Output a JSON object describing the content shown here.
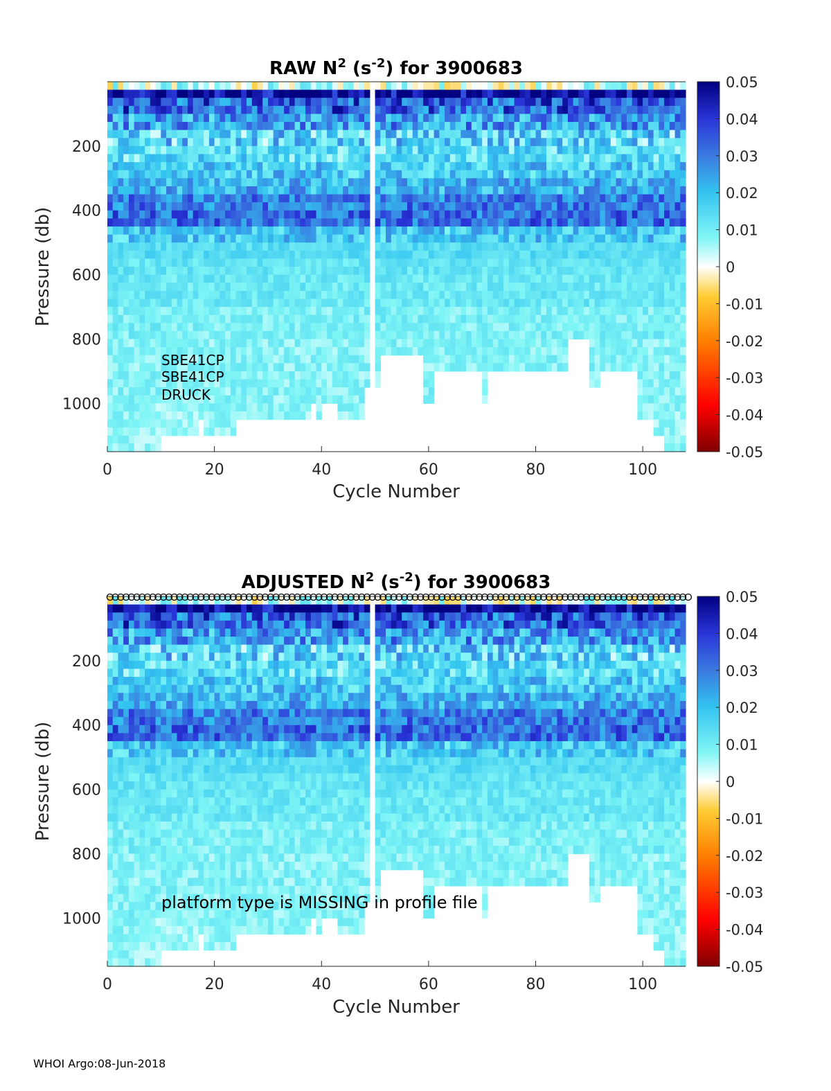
{
  "footer": "WHOI Argo:08-Jun-2018",
  "chart_data": [
    {
      "type": "heatmap",
      "title": {
        "prefix": "RAW N",
        "sup1": "2",
        "mid": " (s",
        "sup2": "-2",
        "suffix": ") for 3900683"
      },
      "xlabel": "Cycle Number",
      "ylabel": "Pressure (db)",
      "xlim": [
        0,
        108
      ],
      "ylim": [
        1150,
        0
      ],
      "xticks": [
        0,
        20,
        40,
        60,
        80,
        100
      ],
      "yticks": [
        200,
        400,
        600,
        800,
        1000
      ],
      "clim": [
        -0.05,
        0.05
      ],
      "colorbar_ticks": [
        "0.05",
        "0.04",
        "0.03",
        "0.02",
        "0.01",
        "0",
        "-0.01",
        "-0.02",
        "-0.03",
        "-0.04",
        "-0.05"
      ],
      "gap_cycles": [
        49,
        50
      ],
      "max_depth_by_cycle_range": [
        {
          "from": 0,
          "to": 10,
          "depth": 1150
        },
        {
          "from": 10,
          "to": 17,
          "depth": 1100
        },
        {
          "from": 17,
          "to": 18,
          "depth": 1050
        },
        {
          "from": 18,
          "to": 24,
          "depth": 1100
        },
        {
          "from": 24,
          "to": 38,
          "depth": 1050
        },
        {
          "from": 38,
          "to": 39,
          "depth": 1000
        },
        {
          "from": 39,
          "to": 40,
          "depth": 1050
        },
        {
          "from": 40,
          "to": 43,
          "depth": 1000
        },
        {
          "from": 43,
          "to": 48,
          "depth": 1050
        },
        {
          "from": 48,
          "to": 49,
          "depth": 950
        },
        {
          "from": 50,
          "to": 51,
          "depth": 950
        },
        {
          "from": 51,
          "to": 59,
          "depth": 850
        },
        {
          "from": 59,
          "to": 61,
          "depth": 1000
        },
        {
          "from": 61,
          "to": 70,
          "depth": 900
        },
        {
          "from": 70,
          "to": 71,
          "depth": 1000
        },
        {
          "from": 71,
          "to": 86,
          "depth": 900
        },
        {
          "from": 86,
          "to": 90,
          "depth": 800
        },
        {
          "from": 90,
          "to": 92,
          "depth": 950
        },
        {
          "from": 92,
          "to": 99,
          "depth": 900
        },
        {
          "from": 99,
          "to": 102,
          "depth": 1050
        },
        {
          "from": 102,
          "to": 104,
          "depth": 1100
        },
        {
          "from": 104,
          "to": 108,
          "depth": 1150
        }
      ],
      "annotation_lines": [
        "SBE41CP",
        "SBE41CP",
        "DRUCK"
      ],
      "markers_at_top": false
    },
    {
      "type": "heatmap",
      "title": {
        "prefix": "ADJUSTED N",
        "sup1": "2",
        "mid": " (s",
        "sup2": "-2",
        "suffix": ") for 3900683"
      },
      "xlabel": "Cycle Number",
      "ylabel": "Pressure (db)",
      "xlim": [
        0,
        108
      ],
      "ylim": [
        1150,
        0
      ],
      "xticks": [
        0,
        20,
        40,
        60,
        80,
        100
      ],
      "yticks": [
        200,
        400,
        600,
        800,
        1000
      ],
      "clim": [
        -0.05,
        0.05
      ],
      "colorbar_ticks": [
        "0.05",
        "0.04",
        "0.03",
        "0.02",
        "0.01",
        "0",
        "-0.01",
        "-0.02",
        "-0.03",
        "-0.04",
        "-0.05"
      ],
      "gap_cycles": [
        49,
        50
      ],
      "max_depth_by_cycle_range": [
        {
          "from": 0,
          "to": 10,
          "depth": 1150
        },
        {
          "from": 10,
          "to": 17,
          "depth": 1100
        },
        {
          "from": 17,
          "to": 18,
          "depth": 1050
        },
        {
          "from": 18,
          "to": 24,
          "depth": 1100
        },
        {
          "from": 24,
          "to": 38,
          "depth": 1050
        },
        {
          "from": 38,
          "to": 39,
          "depth": 1000
        },
        {
          "from": 39,
          "to": 40,
          "depth": 1050
        },
        {
          "from": 40,
          "to": 43,
          "depth": 1000
        },
        {
          "from": 43,
          "to": 48,
          "depth": 1050
        },
        {
          "from": 48,
          "to": 49,
          "depth": 950
        },
        {
          "from": 50,
          "to": 51,
          "depth": 950
        },
        {
          "from": 51,
          "to": 59,
          "depth": 850
        },
        {
          "from": 59,
          "to": 61,
          "depth": 1000
        },
        {
          "from": 61,
          "to": 70,
          "depth": 900
        },
        {
          "from": 70,
          "to": 71,
          "depth": 1000
        },
        {
          "from": 71,
          "to": 86,
          "depth": 900
        },
        {
          "from": 86,
          "to": 90,
          "depth": 800
        },
        {
          "from": 90,
          "to": 92,
          "depth": 950
        },
        {
          "from": 92,
          "to": 99,
          "depth": 900
        },
        {
          "from": 99,
          "to": 102,
          "depth": 1050
        },
        {
          "from": 102,
          "to": 104,
          "depth": 1100
        },
        {
          "from": 104,
          "to": 108,
          "depth": 1150
        }
      ],
      "annotation_lines": [
        "platform type is MISSING in profile file"
      ],
      "markers_at_top": true
    }
  ],
  "layers": [
    {
      "from": 0,
      "to": 20,
      "value": 0.005
    },
    {
      "from": 20,
      "to": 50,
      "value": 0.05
    },
    {
      "from": 50,
      "to": 100,
      "value": 0.034
    },
    {
      "from": 100,
      "to": 150,
      "value": 0.025
    },
    {
      "from": 150,
      "to": 200,
      "value": 0.016
    },
    {
      "from": 200,
      "to": 250,
      "value": 0.014
    },
    {
      "from": 250,
      "to": 300,
      "value": 0.018
    },
    {
      "from": 300,
      "to": 350,
      "value": 0.022
    },
    {
      "from": 350,
      "to": 400,
      "value": 0.03
    },
    {
      "from": 400,
      "to": 450,
      "value": 0.032
    },
    {
      "from": 450,
      "to": 500,
      "value": 0.018
    },
    {
      "from": 500,
      "to": 550,
      "value": 0.014
    },
    {
      "from": 550,
      "to": 600,
      "value": 0.012
    },
    {
      "from": 600,
      "to": 700,
      "value": 0.011
    },
    {
      "from": 700,
      "to": 800,
      "value": 0.009
    },
    {
      "from": 800,
      "to": 1000,
      "value": 0.008
    },
    {
      "from": 1000,
      "to": 1150,
      "value": 0.007
    }
  ]
}
